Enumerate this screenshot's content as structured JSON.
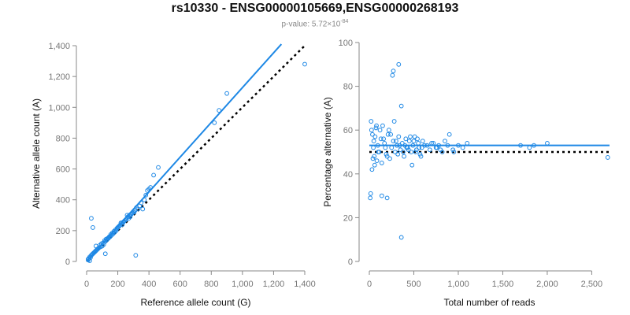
{
  "header": {
    "title": "rs10330 - ENSG00000105669,ENSG00000268193",
    "pvalue_prefix": "p-value: 5.72×10",
    "pvalue_exp": "-84"
  },
  "colors": {
    "points": "#1e88e5",
    "fit": "#1e88e5",
    "reference": "#000000",
    "axis": "#888888"
  },
  "chart_data": [
    {
      "type": "scatter",
      "title": "",
      "xlabel": "Reference allele count (G)",
      "ylabel": "Alternative allele count (A)",
      "xlim": [
        0,
        1400
      ],
      "ylim": [
        0,
        1400
      ],
      "xticks": [
        0,
        200,
        400,
        600,
        800,
        1000,
        1200,
        1400
      ],
      "xtick_labels": [
        "0",
        "200",
        "400",
        "600",
        "800",
        "1,000",
        "1,200",
        "1,400"
      ],
      "yticks": [
        0,
        200,
        400,
        600,
        800,
        1000,
        1200,
        1400
      ],
      "ytick_labels": [
        "0",
        "200",
        "400",
        "600",
        "800",
        "1,000",
        "1,200",
        "1,400"
      ],
      "fit_line": {
        "x": [
          0,
          1250
        ],
        "y": [
          0,
          1410
        ]
      },
      "reference_line": {
        "x": [
          0,
          1400
        ],
        "y": [
          0,
          1400
        ]
      },
      "x": [
        1400,
        900,
        850,
        820,
        460,
        430,
        410,
        400,
        390,
        380,
        370,
        350,
        340,
        330,
        320,
        310,
        300,
        290,
        280,
        270,
        260,
        250,
        240,
        230,
        220,
        210,
        200,
        190,
        180,
        170,
        160,
        150,
        140,
        130,
        120,
        110,
        100,
        90,
        80,
        70,
        60,
        50,
        40,
        30,
        20,
        15,
        10,
        25,
        35,
        45,
        55,
        65,
        75,
        85,
        95,
        105,
        115,
        125,
        135,
        145,
        155,
        165,
        175,
        185,
        195,
        205,
        215,
        225,
        235,
        245,
        255,
        265,
        275,
        285,
        295,
        305,
        315,
        360,
        30,
        40,
        120,
        60,
        20,
        10
      ],
      "y": [
        1280,
        1090,
        980,
        900,
        610,
        560,
        480,
        470,
        460,
        430,
        400,
        380,
        360,
        340,
        350,
        330,
        320,
        310,
        290,
        280,
        300,
        270,
        260,
        240,
        250,
        230,
        220,
        200,
        190,
        180,
        170,
        160,
        150,
        140,
        130,
        110,
        100,
        95,
        90,
        80,
        70,
        60,
        50,
        40,
        30,
        20,
        10,
        25,
        45,
        55,
        65,
        75,
        85,
        105,
        115,
        120,
        135,
        145,
        150,
        160,
        175,
        185,
        195,
        205,
        215,
        225,
        235,
        250,
        255,
        265,
        275,
        290,
        300,
        305,
        315,
        320,
        40,
        340,
        280,
        220,
        50,
        100,
        5,
        15
      ]
    },
    {
      "type": "scatter",
      "title": "",
      "xlabel": "Total number of reads",
      "ylabel": "Percentage alternative (A)",
      "xlim": [
        0,
        2700
      ],
      "ylim": [
        0,
        100
      ],
      "xticks": [
        0,
        500,
        1000,
        1500,
        2000,
        2500
      ],
      "xtick_labels": [
        "0",
        "500",
        "1,000",
        "1,500",
        "2,000",
        "2,500"
      ],
      "yticks": [
        0,
        20,
        40,
        60,
        80,
        100
      ],
      "ytick_labels": [
        "0",
        "20",
        "40",
        "60",
        "80",
        "100"
      ],
      "fit_line": {
        "x": [
          0,
          2700
        ],
        "y": [
          53,
          53
        ]
      },
      "reference_line": {
        "x": [
          0,
          2700
        ],
        "y": [
          50,
          50
        ]
      },
      "x": [
        2680,
        2000,
        1850,
        1800,
        1700,
        1100,
        1050,
        1000,
        950,
        900,
        850,
        800,
        780,
        750,
        700,
        650,
        600,
        580,
        560,
        540,
        520,
        500,
        480,
        460,
        440,
        420,
        400,
        380,
        360,
        340,
        320,
        300,
        280,
        260,
        240,
        220,
        200,
        180,
        160,
        140,
        120,
        100,
        80,
        60,
        50,
        40,
        30,
        25,
        20,
        15,
        10,
        35,
        45,
        55,
        65,
        75,
        85,
        95,
        110,
        130,
        150,
        170,
        190,
        210,
        230,
        250,
        270,
        290,
        310,
        330,
        350,
        370,
        390,
        410,
        430,
        450,
        470,
        490,
        510,
        530,
        550,
        570,
        590,
        620,
        680,
        720,
        760,
        820,
        880,
        940,
        330,
        270,
        200,
        140,
        360
      ],
      "y": [
        47.5,
        54,
        53,
        52,
        53,
        54,
        52,
        53,
        50,
        58,
        55,
        51,
        53,
        52,
        54,
        53,
        55,
        48,
        52,
        56,
        50,
        55,
        44,
        57,
        51,
        52,
        53,
        50,
        71,
        53,
        49,
        55,
        64,
        85,
        58,
        60,
        48,
        52,
        56,
        45,
        60,
        50,
        62,
        44,
        55,
        47,
        42,
        60,
        64,
        31,
        29,
        58,
        52,
        48,
        57,
        61,
        46,
        53,
        50,
        56,
        62,
        54,
        49,
        58,
        47,
        52,
        55,
        50,
        53,
        57,
        51,
        54,
        48,
        56,
        52,
        55,
        50,
        53,
        57,
        51,
        54,
        49,
        52,
        53,
        51,
        54,
        52,
        50,
        53,
        51,
        90,
        87,
        29,
        30,
        11
      ]
    }
  ]
}
